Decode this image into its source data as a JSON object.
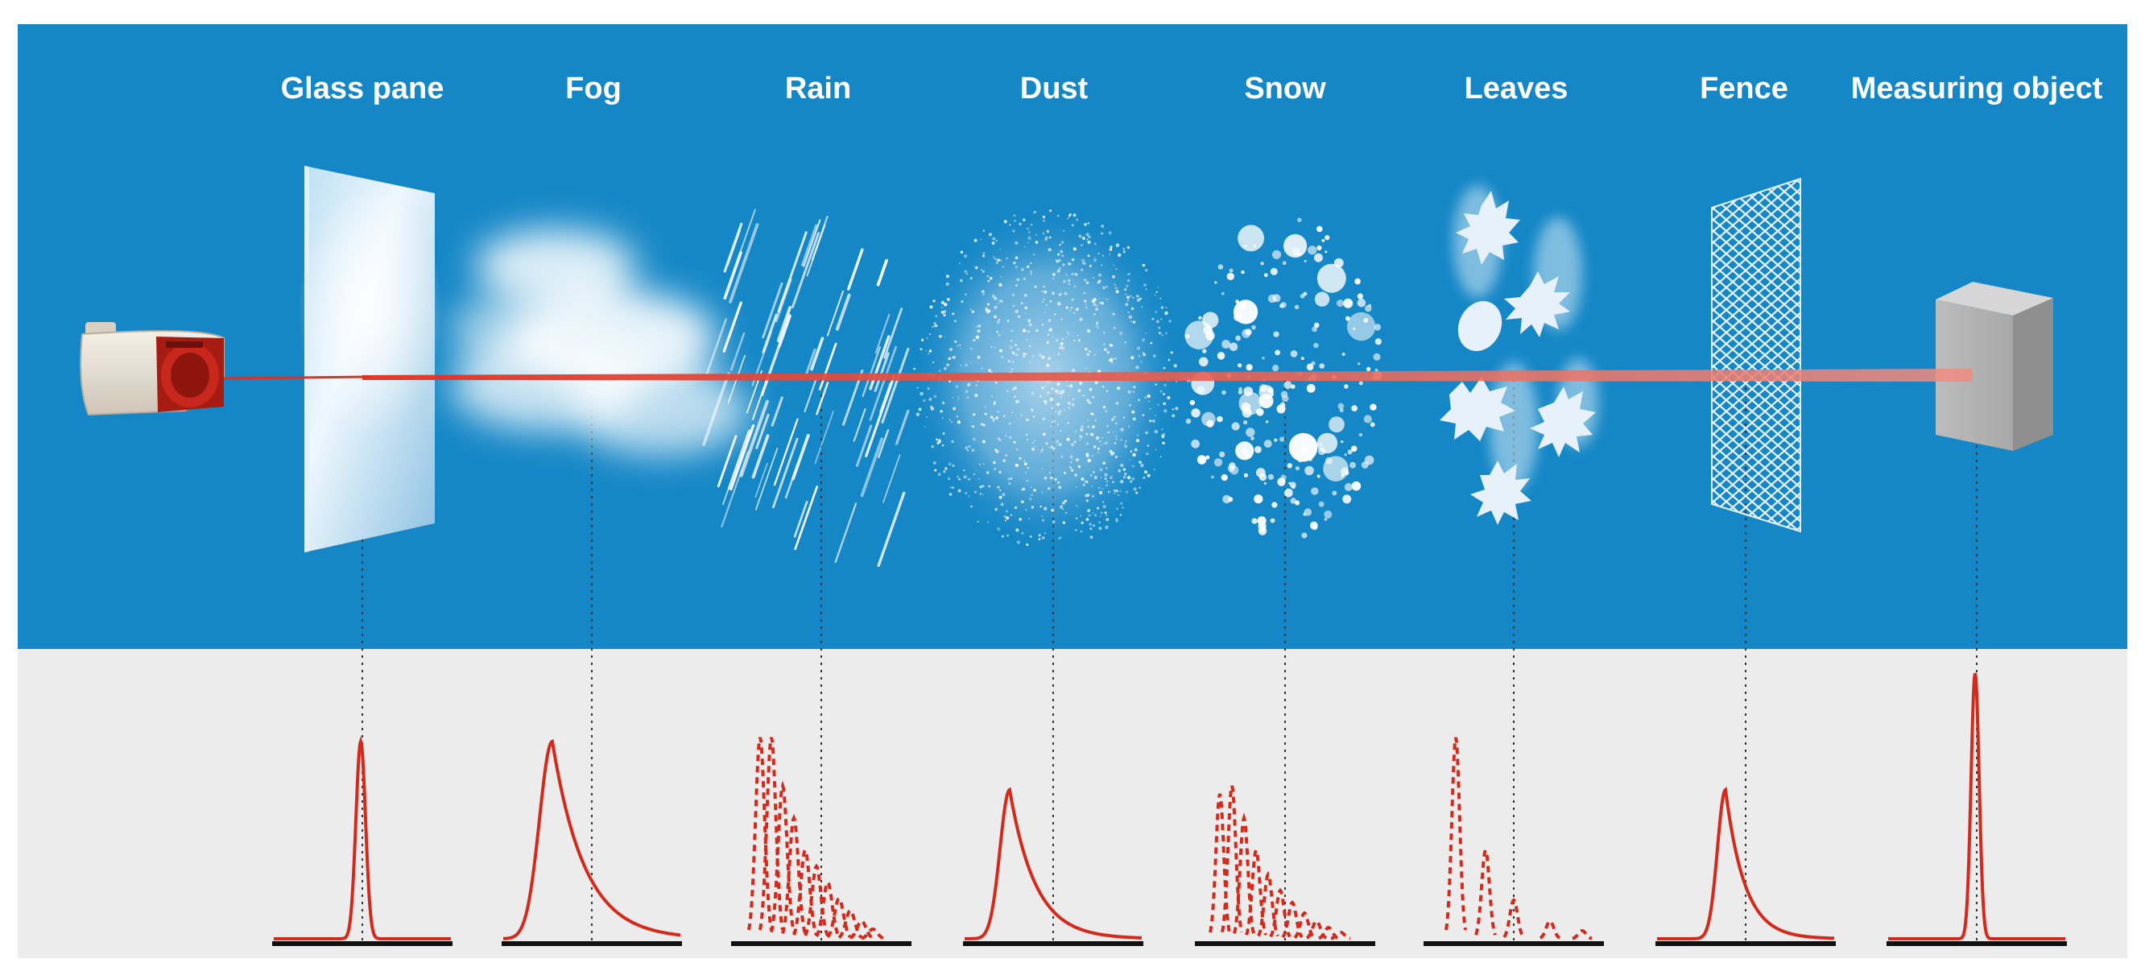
{
  "labels": [
    {
      "key": "glass",
      "text": "Glass pane"
    },
    {
      "key": "fog",
      "text": "Fog"
    },
    {
      "key": "rain",
      "text": "Rain"
    },
    {
      "key": "dust",
      "text": "Dust"
    },
    {
      "key": "snow",
      "text": "Snow"
    },
    {
      "key": "leaves",
      "text": "Leaves"
    },
    {
      "key": "fence",
      "text": "Fence"
    },
    {
      "key": "object",
      "text": "Measuring object"
    }
  ],
  "colors": {
    "sky": "#1587c6",
    "ground": "#ececec",
    "beam": "#e0301e",
    "curve": "#d42a1c",
    "baseline": "#111111"
  },
  "icons": [
    "laser-sensor-icon",
    "glass-pane-icon",
    "fog-cloud-icon",
    "rain-streaks-icon",
    "dust-cloud-icon",
    "snow-flakes-icon",
    "leaf-icon",
    "fence-mesh-icon",
    "measuring-block-icon"
  ]
}
